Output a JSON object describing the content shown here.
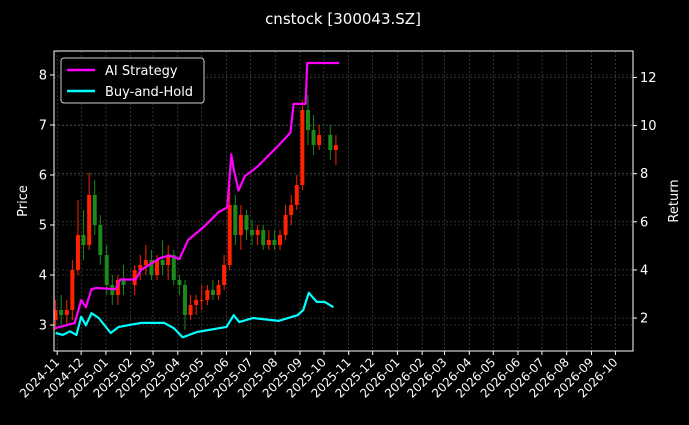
{
  "chart_data": {
    "type": "line",
    "title": "cnstock [300043.SZ]",
    "xlabel": "",
    "ylabel_left": "Price",
    "ylabel_right": "Return",
    "xlim": [
      "2024-10-28",
      "2026-10-23"
    ],
    "ylim_left": [
      2.48,
      8.48
    ],
    "ylim_right": [
      0.63,
      13.1
    ],
    "x_ticks": [
      "2024-11",
      "2024-12",
      "2025-01",
      "2025-02",
      "2025-03",
      "2025-04",
      "2025-05",
      "2025-06",
      "2025-07",
      "2025-08",
      "2025-09",
      "2025-10",
      "2025-11",
      "2025-12",
      "2026-01",
      "2026-02",
      "2026-03",
      "2026-04",
      "2026-05",
      "2026-06",
      "2026-07",
      "2026-08",
      "2026-09",
      "2026-10"
    ],
    "y_ticks_left": [
      "3",
      "4",
      "5",
      "6",
      "7",
      "8"
    ],
    "y_ticks_right": [
      "2",
      "4",
      "6",
      "8",
      "10",
      "12"
    ],
    "grid": true,
    "legend_position": "top-left",
    "colors": {
      "background": "#000000",
      "strategy": "#ff00ff",
      "buy_hold": "#00ffff",
      "candle_up": "#ff2200",
      "candle_down": "#1a8a1a",
      "grid": "#555555"
    },
    "candles": {
      "columns": [
        "date",
        "open",
        "high",
        "low",
        "close"
      ],
      "rows": [
        [
          "2024-10-30",
          3.1,
          3.5,
          2.9,
          3.3
        ],
        [
          "2024-11-06",
          3.3,
          3.6,
          3.0,
          3.2
        ],
        [
          "2024-11-13",
          3.2,
          3.5,
          3.0,
          3.3
        ],
        [
          "2024-11-20",
          3.3,
          4.3,
          3.1,
          4.1
        ],
        [
          "2024-11-27",
          4.1,
          5.5,
          4.0,
          4.8
        ],
        [
          "2024-12-04",
          4.8,
          5.3,
          4.3,
          4.6
        ],
        [
          "2024-12-11",
          4.6,
          6.05,
          4.5,
          5.6
        ],
        [
          "2024-12-18",
          5.6,
          5.9,
          4.8,
          5.0
        ],
        [
          "2024-12-25",
          5.0,
          5.2,
          4.2,
          4.4
        ],
        [
          "2025-01-02",
          4.4,
          4.6,
          3.6,
          3.8
        ],
        [
          "2025-01-09",
          3.8,
          4.0,
          3.4,
          3.6
        ],
        [
          "2025-01-16",
          3.6,
          4.0,
          3.4,
          3.9
        ],
        [
          "2025-01-23",
          3.9,
          4.2,
          3.6,
          3.8
        ],
        [
          "2025-02-06",
          3.8,
          4.2,
          3.6,
          4.1
        ],
        [
          "2025-02-13",
          4.1,
          4.4,
          3.9,
          4.2
        ],
        [
          "2025-02-20",
          4.2,
          4.6,
          4.0,
          4.3
        ],
        [
          "2025-02-27",
          4.3,
          4.5,
          3.9,
          4.0
        ],
        [
          "2025-03-06",
          4.0,
          4.4,
          3.9,
          4.3
        ],
        [
          "2025-03-13",
          4.3,
          4.7,
          4.0,
          4.2
        ],
        [
          "2025-03-20",
          4.2,
          4.6,
          3.9,
          4.4
        ],
        [
          "2025-03-27",
          4.4,
          4.5,
          3.8,
          3.9
        ],
        [
          "2025-04-03",
          3.9,
          4.0,
          3.6,
          3.8
        ],
        [
          "2025-04-10",
          3.8,
          3.9,
          2.9,
          3.2
        ],
        [
          "2025-04-17",
          3.2,
          3.6,
          3.1,
          3.4
        ],
        [
          "2025-04-24",
          3.4,
          3.6,
          3.2,
          3.5
        ],
        [
          "2025-05-01",
          3.5,
          3.8,
          3.3,
          3.5
        ],
        [
          "2025-05-08",
          3.5,
          3.8,
          3.4,
          3.7
        ],
        [
          "2025-05-15",
          3.7,
          3.9,
          3.5,
          3.6
        ],
        [
          "2025-05-22",
          3.6,
          3.9,
          3.5,
          3.8
        ],
        [
          "2025-05-29",
          3.8,
          4.4,
          3.7,
          4.2
        ],
        [
          "2025-06-05",
          4.2,
          5.8,
          4.1,
          5.4
        ],
        [
          "2025-06-12",
          5.4,
          5.6,
          4.6,
          4.8
        ],
        [
          "2025-06-19",
          4.8,
          5.4,
          4.5,
          5.2
        ],
        [
          "2025-06-26",
          5.2,
          5.3,
          4.7,
          4.9
        ],
        [
          "2025-07-03",
          4.9,
          5.1,
          4.6,
          4.8
        ],
        [
          "2025-07-10",
          4.8,
          5.0,
          4.6,
          4.9
        ],
        [
          "2025-07-17",
          4.9,
          5.0,
          4.5,
          4.6
        ],
        [
          "2025-07-24",
          4.6,
          4.9,
          4.5,
          4.7
        ],
        [
          "2025-07-31",
          4.7,
          4.9,
          4.5,
          4.6
        ],
        [
          "2025-08-07",
          4.6,
          4.9,
          4.5,
          4.8
        ],
        [
          "2025-08-14",
          4.8,
          5.4,
          4.7,
          5.2
        ],
        [
          "2025-08-21",
          5.2,
          5.6,
          5.0,
          5.4
        ],
        [
          "2025-08-28",
          5.4,
          6.0,
          5.3,
          5.8
        ],
        [
          "2025-09-04",
          5.8,
          7.5,
          5.7,
          7.3
        ],
        [
          "2025-09-11",
          7.3,
          7.6,
          6.6,
          6.9
        ],
        [
          "2025-09-18",
          6.9,
          7.2,
          6.4,
          6.6
        ],
        [
          "2025-09-25",
          6.6,
          7.0,
          6.5,
          6.8
        ],
        [
          "2025-10-09",
          6.8,
          7.0,
          6.3,
          6.5
        ],
        [
          "2025-10-16",
          6.5,
          6.8,
          6.2,
          6.6
        ]
      ]
    },
    "series": [
      {
        "name": "AI Strategy",
        "axis": "right",
        "points": [
          [
            "2024-10-30",
            1.58
          ],
          [
            "2024-11-23",
            1.8
          ],
          [
            "2024-12-01",
            2.75
          ],
          [
            "2024-12-07",
            2.45
          ],
          [
            "2024-12-14",
            3.2
          ],
          [
            "2024-12-20",
            3.25
          ],
          [
            "2025-01-13",
            3.2
          ],
          [
            "2025-01-19",
            3.6
          ],
          [
            "2025-02-07",
            3.6
          ],
          [
            "2025-02-14",
            4.0
          ],
          [
            "2025-03-10",
            4.5
          ],
          [
            "2025-03-22",
            4.6
          ],
          [
            "2025-04-03",
            4.45
          ],
          [
            "2025-04-14",
            5.25
          ],
          [
            "2025-05-04",
            5.8
          ],
          [
            "2025-05-22",
            6.4
          ],
          [
            "2025-06-02",
            6.6
          ],
          [
            "2025-06-07",
            8.8
          ],
          [
            "2025-06-10",
            8.2
          ],
          [
            "2025-06-16",
            7.3
          ],
          [
            "2025-06-24",
            7.9
          ],
          [
            "2025-07-10",
            8.3
          ],
          [
            "2025-08-03",
            9.1
          ],
          [
            "2025-08-20",
            9.7
          ],
          [
            "2025-08-24",
            10.9
          ],
          [
            "2025-09-08",
            10.9
          ],
          [
            "2025-09-10",
            12.6
          ],
          [
            "2025-10-20",
            12.6
          ]
        ]
      },
      {
        "name": "Buy-and-Hold",
        "axis": "right",
        "points": [
          [
            "2024-10-30",
            1.38
          ],
          [
            "2024-11-08",
            1.3
          ],
          [
            "2024-11-17",
            1.45
          ],
          [
            "2024-11-25",
            1.3
          ],
          [
            "2024-12-01",
            2.05
          ],
          [
            "2024-12-07",
            1.7
          ],
          [
            "2024-12-14",
            2.2
          ],
          [
            "2024-12-23",
            2.0
          ],
          [
            "2025-01-07",
            1.38
          ],
          [
            "2025-01-17",
            1.63
          ],
          [
            "2025-02-14",
            1.8
          ],
          [
            "2025-03-15",
            1.8
          ],
          [
            "2025-03-27",
            1.58
          ],
          [
            "2025-04-07",
            1.2
          ],
          [
            "2025-04-25",
            1.42
          ],
          [
            "2025-06-01",
            1.63
          ],
          [
            "2025-06-10",
            2.12
          ],
          [
            "2025-06-17",
            1.83
          ],
          [
            "2025-07-04",
            2.0
          ],
          [
            "2025-08-05",
            1.88
          ],
          [
            "2025-08-29",
            2.12
          ],
          [
            "2025-09-05",
            2.33
          ],
          [
            "2025-09-12",
            3.05
          ],
          [
            "2025-09-22",
            2.67
          ],
          [
            "2025-10-02",
            2.67
          ],
          [
            "2025-10-13",
            2.45
          ]
        ]
      }
    ]
  }
}
